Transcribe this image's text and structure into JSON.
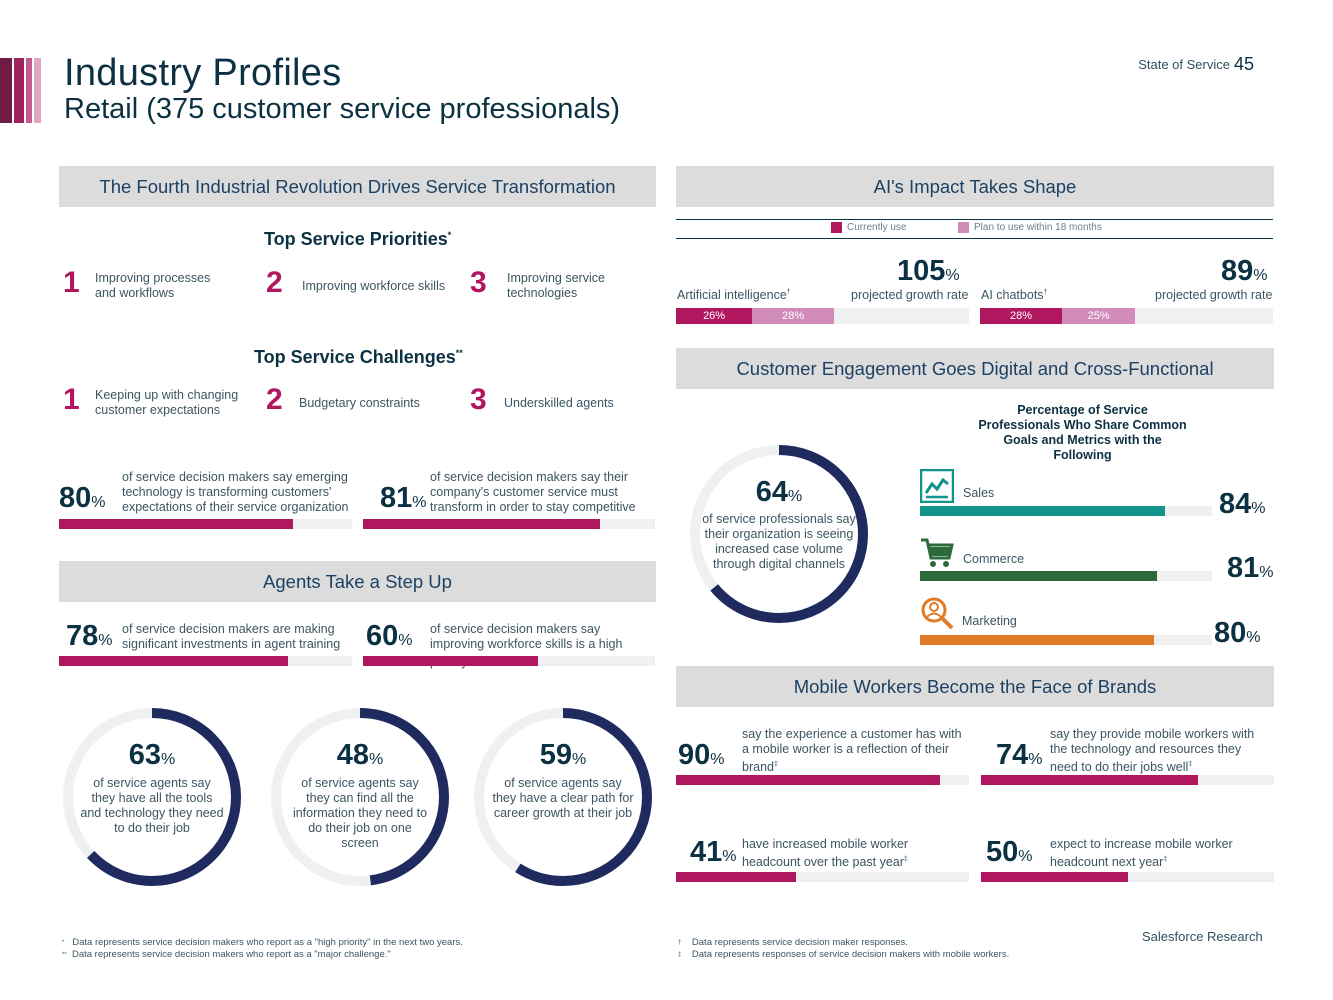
{
  "header": {
    "title": "Industry Profiles",
    "subtitle": "Retail (375 customer service professionals)",
    "report": "State of Service",
    "page": "45",
    "stripe_colors": [
      "#6e1b45",
      "#a0225e",
      "#c45d8f",
      "#e1a6c4"
    ]
  },
  "colors": {
    "navy": "#0c3142",
    "magenta": "#b0175e",
    "pink": "#d08bb8",
    "teal": "#12948a",
    "green": "#2c6a3a",
    "orange": "#e07a27",
    "donut_navy": "#1f2a5e"
  },
  "fourth": {
    "title": "The Fourth Industrial Revolution Drives Service Transformation",
    "priorities_title": "Top Service Priorities",
    "priorities_mark": "*",
    "priorities": [
      {
        "rank": "1",
        "text": "Improving processes and workflows"
      },
      {
        "rank": "2",
        "text": "Improving workforce skills"
      },
      {
        "rank": "3",
        "text": "Improving service technologies"
      }
    ],
    "challenges_title": "Top Service Challenges",
    "challenges_mark": "**",
    "challenges": [
      {
        "rank": "1",
        "text": "Keeping up with changing customer expectations"
      },
      {
        "rank": "2",
        "text": "Budgetary constraints"
      },
      {
        "rank": "3",
        "text": "Underskilled agents"
      }
    ],
    "stats": [
      {
        "value": 80,
        "num": "80",
        "text": "of service decision makers say emerging technology is transforming customers' expectations of their service organization"
      },
      {
        "value": 81,
        "num": "81",
        "text": "of service decision makers say their company's customer service must transform in order to stay competitive"
      }
    ]
  },
  "agents": {
    "title": "Agents Take a Step Up",
    "stats": [
      {
        "value": 78,
        "num": "78",
        "text": "of service decision makers are making significant investments in agent training"
      },
      {
        "value": 60,
        "num": "60",
        "text": "of service decision makers say improving workforce skills is a high priority",
        "mark": "*"
      }
    ],
    "donuts": [
      {
        "value": 63,
        "num": "63",
        "text": "of service agents say they have all the tools and technology they need to do their job"
      },
      {
        "value": 48,
        "num": "48",
        "text": "of service agents say they can find all the information they need to do their job on one screen"
      },
      {
        "value": 59,
        "num": "59",
        "text": "of service agents say they have a clear path for career growth at their job"
      }
    ]
  },
  "ai": {
    "title": "AI's Impact Takes Shape",
    "legend_current": "Currently use",
    "legend_plan": "Plan to use within 18 months",
    "items": [
      {
        "label": "Artificial intelligence",
        "mark": "†",
        "current": 26,
        "current_label": "26%",
        "plan": 28,
        "plan_label": "28%",
        "growth": "105",
        "growth_label": "projected growth rate"
      },
      {
        "label": "AI chatbots",
        "mark": "†",
        "current": 28,
        "current_label": "28%",
        "plan": 25,
        "plan_label": "25%",
        "growth": "89",
        "growth_label": "projected growth rate"
      }
    ]
  },
  "engagement": {
    "title": "Customer Engagement Goes Digital and Cross-Functional",
    "donut": {
      "value": 64,
      "num": "64",
      "text": "of service professionals say their organization is seeing increased case volume through digital channels"
    },
    "chart_title": "Percentage of Service Professionals Who Share Common Goals and Metrics with the Following",
    "chart_data": {
      "type": "bar",
      "title": "Percentage of Service Professionals Who Share Common Goals and Metrics with the Following",
      "categories": [
        "Sales",
        "Commerce",
        "Marketing"
      ],
      "values": [
        84,
        81,
        80
      ],
      "ylim": [
        0,
        100
      ],
      "labels": [
        "84",
        "81",
        "80"
      ],
      "icons": [
        "chart-icon",
        "cart-icon",
        "magnifier-icon"
      ]
    }
  },
  "mobile": {
    "title": "Mobile Workers Become the Face of Brands",
    "stats": [
      {
        "value": 90,
        "num": "90",
        "text": "say the experience a customer has with a mobile worker is a reflection of their brand",
        "mark": "‡"
      },
      {
        "value": 74,
        "num": "74",
        "text": "say they provide mobile workers with the technology and resources they need to do their jobs well",
        "mark": "‡"
      },
      {
        "value": 41,
        "num": "41",
        "text": "have increased mobile worker headcount over the past year",
        "mark": "‡"
      },
      {
        "value": 50,
        "num": "50",
        "text": "expect to increase mobile worker headcount next year",
        "mark": "‡"
      }
    ]
  },
  "footnotes": {
    "left": [
      {
        "mark": "*",
        "text": "Data represents service decision makers who report as a \"high priority\" in the next two years."
      },
      {
        "mark": "**",
        "text": "Data represents service decision makers who report as a \"major challenge.\""
      }
    ],
    "right": [
      {
        "mark": "†",
        "text": "Data represents service decision maker responses."
      },
      {
        "mark": "‡",
        "text": "Data represents responses of service decision makers with mobile workers."
      }
    ],
    "brand": "Salesforce Research"
  }
}
